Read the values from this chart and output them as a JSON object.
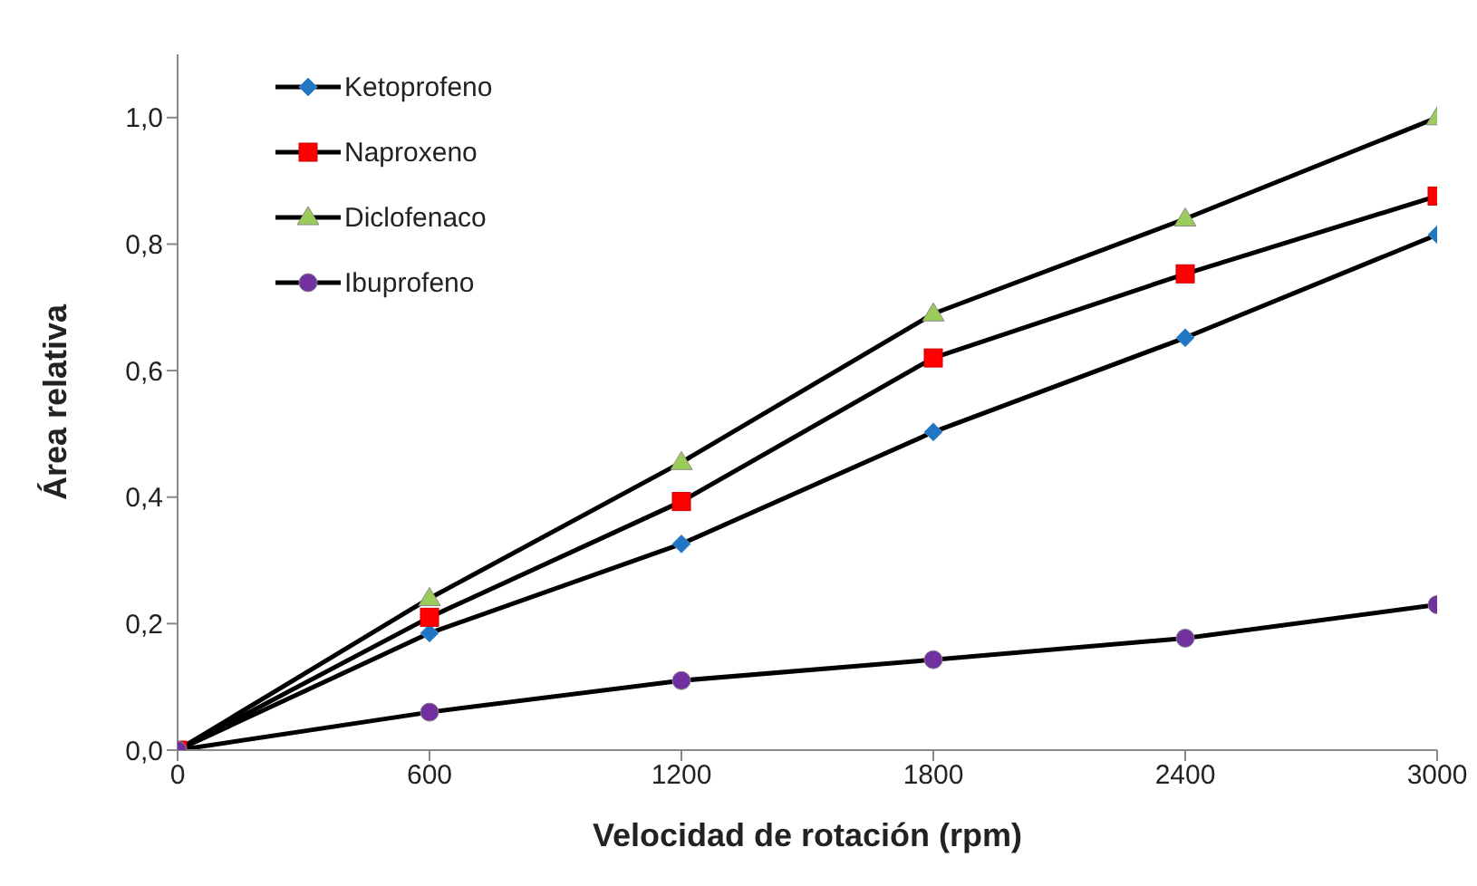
{
  "chart_data": {
    "type": "line",
    "xlabel": "Velocidad de rotación (rpm)",
    "ylabel": "Área relativa",
    "x": [
      0,
      600,
      1200,
      1800,
      2400,
      3000
    ],
    "series": [
      {
        "name": "Ketoprofeno",
        "color": "#1f77c4",
        "marker": "diamond",
        "values": [
          0,
          0.185,
          0.326,
          0.503,
          0.652,
          0.815
        ]
      },
      {
        "name": "Naproxeno",
        "color": "#ff0000",
        "marker": "square",
        "values": [
          0,
          0.21,
          0.393,
          0.62,
          0.753,
          0.876
        ]
      },
      {
        "name": "Diclofenaco",
        "color": "#9bcc5a",
        "marker": "triangle",
        "values": [
          0,
          0.24,
          0.455,
          0.69,
          0.84,
          1.0
        ]
      },
      {
        "name": "Ibuprofeno",
        "color": "#7030a0",
        "marker": "circle",
        "values": [
          0,
          0.06,
          0.11,
          0.143,
          0.177,
          0.23
        ]
      }
    ],
    "xlim": [
      0,
      3000
    ],
    "xticks": [
      0,
      600,
      1200,
      1800,
      2400,
      3000
    ],
    "ylim": [
      0,
      1.1
    ],
    "yticks": [
      {
        "value": 0,
        "label": "0,0"
      },
      {
        "value": 0.2,
        "label": "0,2"
      },
      {
        "value": 0.4,
        "label": "0,4"
      },
      {
        "value": 0.6,
        "label": "0,6"
      },
      {
        "value": 0.8,
        "label": "0,8"
      },
      {
        "value": 1.0,
        "label": "1,0"
      }
    ],
    "grid": false,
    "legend": "top left",
    "line_style": "solid"
  }
}
